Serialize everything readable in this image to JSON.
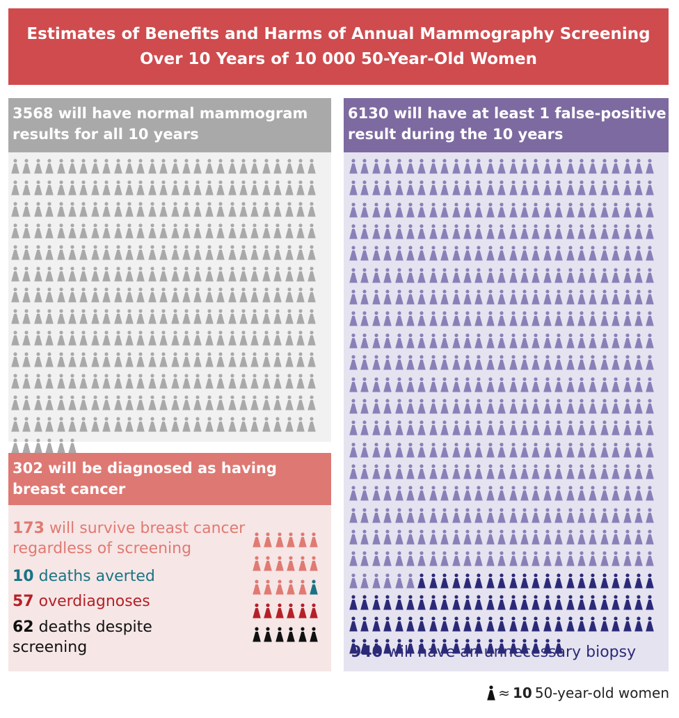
{
  "title": {
    "line1": "Estimates of Benefits and Harms of Annual Mammography Screening",
    "line2": "Over 10 Years of 10 000 50-Year-Old Women"
  },
  "normal": {
    "number": "3568",
    "text": "will have normal mammogram results for all 10 years",
    "icon_count": 357,
    "color": "#a9a9aa"
  },
  "false_positive": {
    "number": "6130",
    "text": "will have at least 1 false-positive result during the 10 years",
    "icon_count": 613,
    "biopsy_icon_count": 94,
    "color": "#8a80b8",
    "biopsy_color": "#2b2a78"
  },
  "biopsy": {
    "number": "940",
    "text": "will have an unnecessary biopsy"
  },
  "cancer": {
    "number": "302",
    "text": "will be diagnosed as having breast cancer",
    "outcomes": [
      {
        "number": "173",
        "text": "will survive breast cancer regardless of screening",
        "color": "#e07a72",
        "icon_count": 17
      },
      {
        "number": "10",
        "text": "deaths averted",
        "color": "#1a7384",
        "icon_count": 1
      },
      {
        "number": "57",
        "text": "overdiagnoses",
        "color": "#b52027",
        "icon_count": 6
      },
      {
        "number": "62",
        "text": "deaths despite screening",
        "color": "#111111",
        "icon_count": 6
      }
    ]
  },
  "legend": {
    "approx": "≈",
    "number": "10",
    "text": "50-year-old women"
  }
}
